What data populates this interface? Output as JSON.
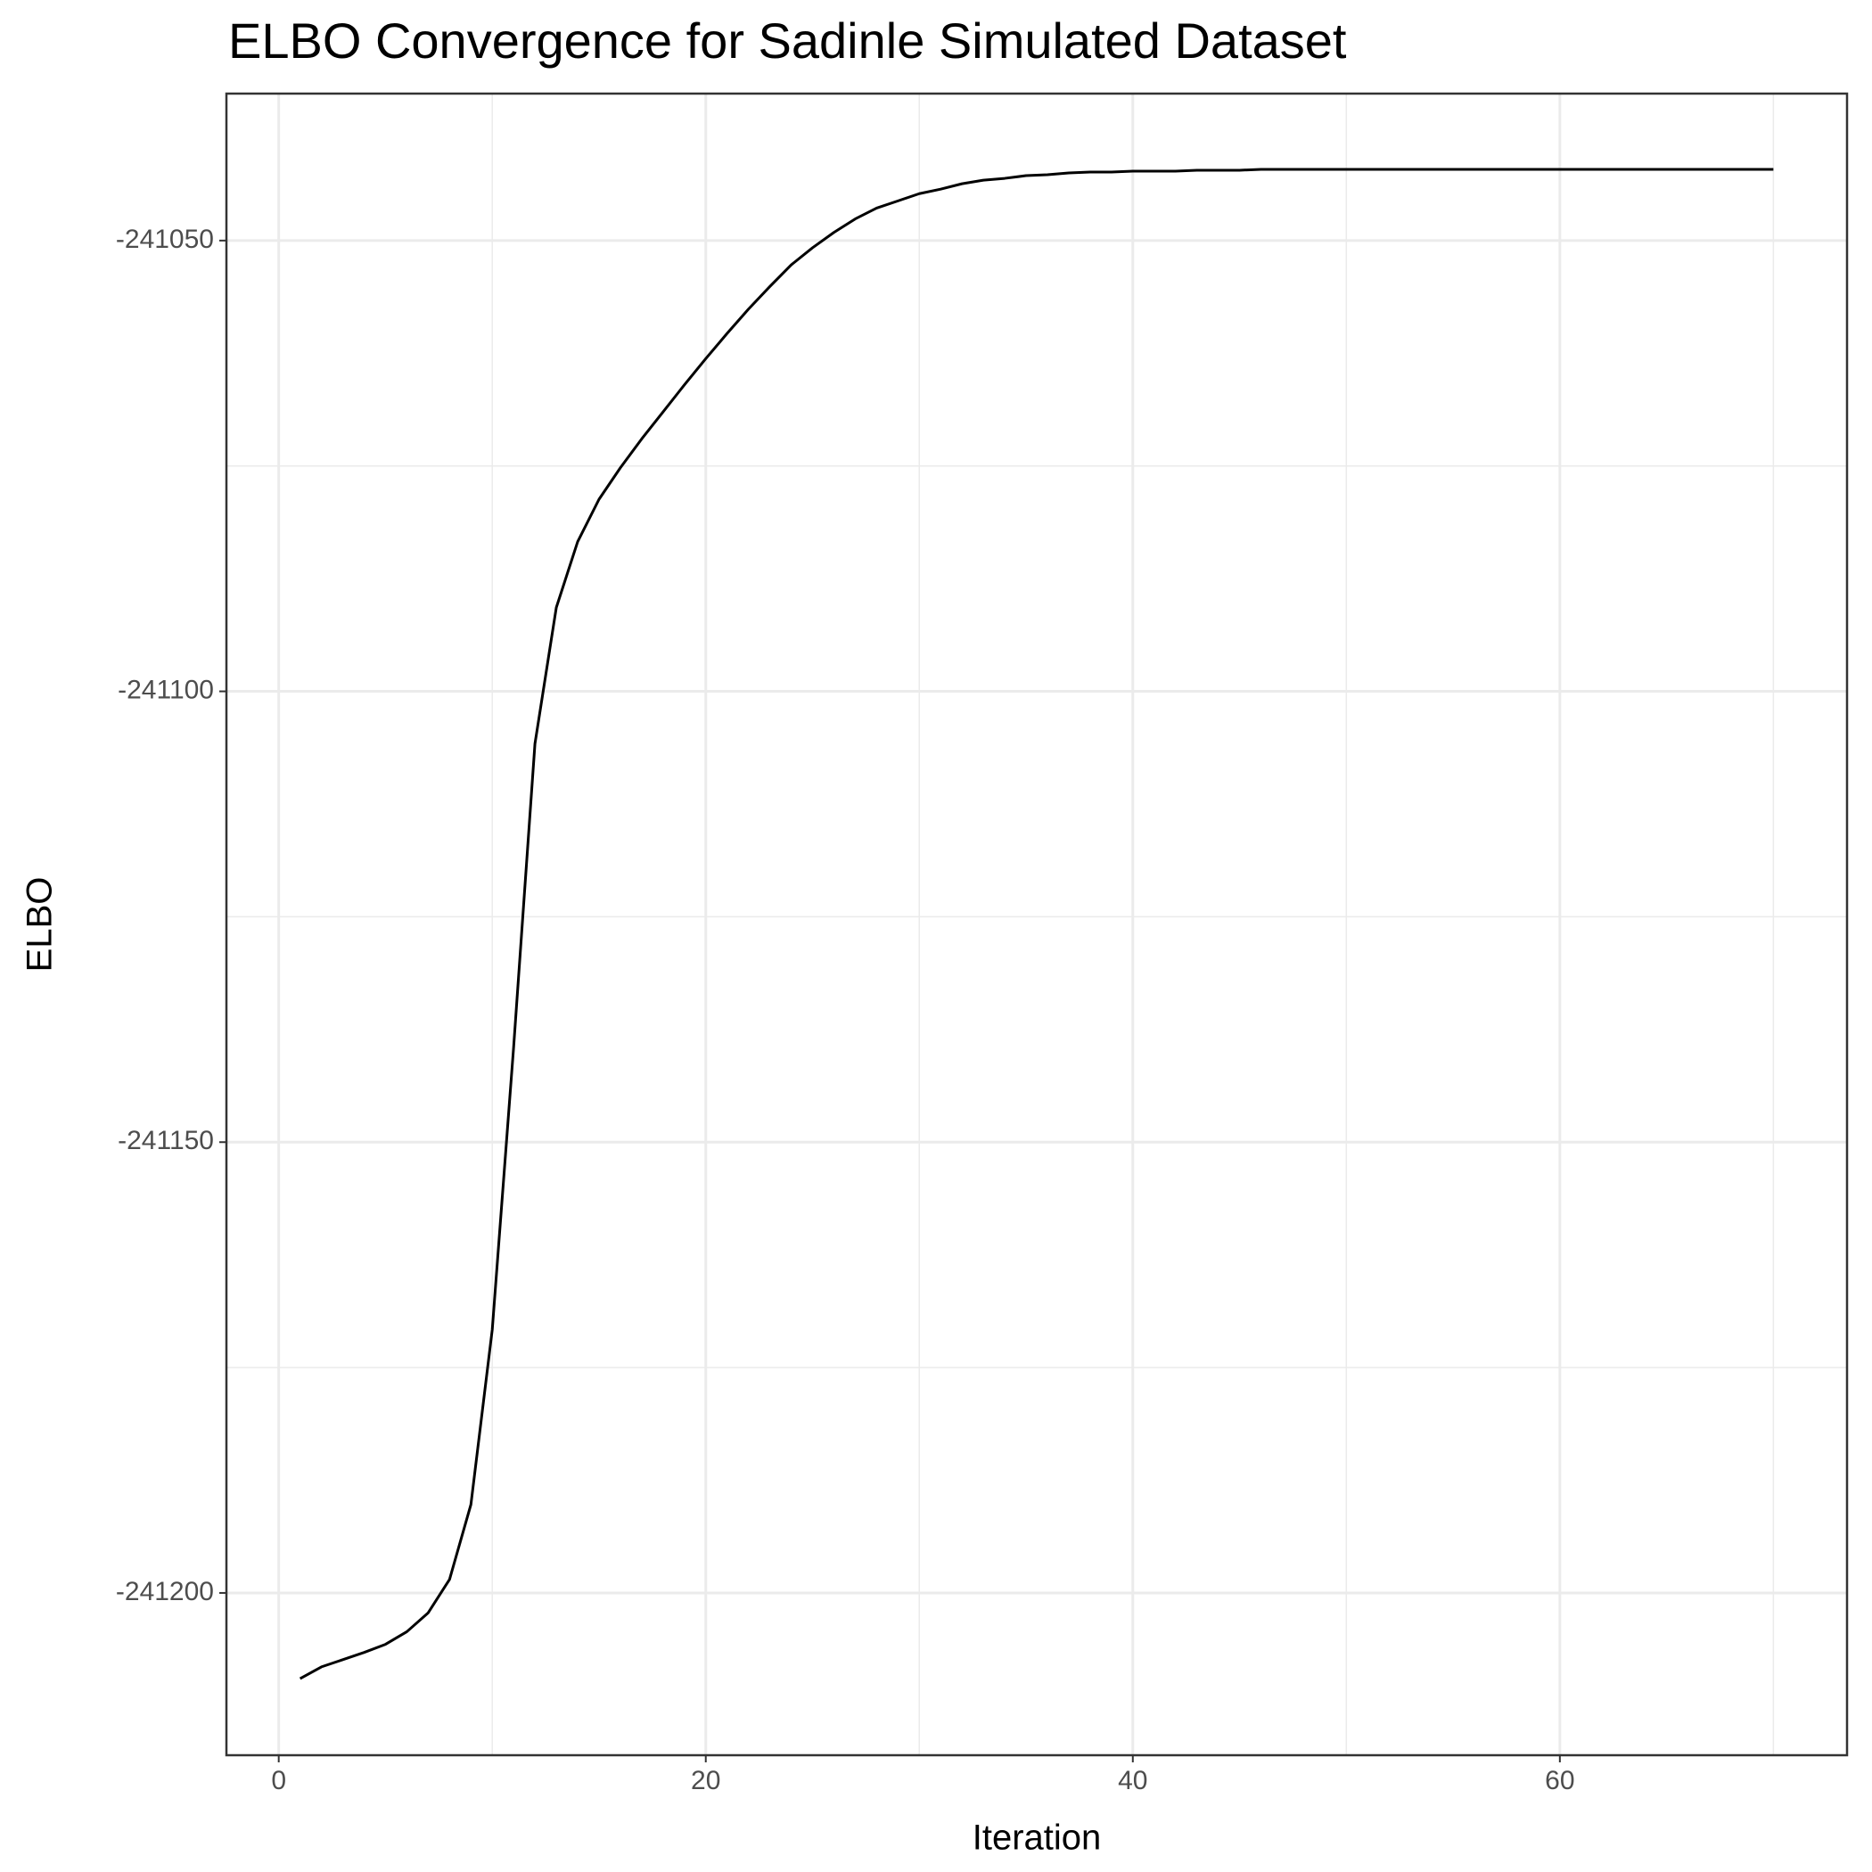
{
  "chart_data": {
    "type": "line",
    "title": "ELBO Convergence for Sadinle Simulated Dataset",
    "x_label": "Iteration",
    "y_label": "ELBO",
    "x": [
      1,
      2,
      3,
      4,
      5,
      6,
      7,
      8,
      9,
      10,
      11,
      12,
      13,
      14,
      15,
      16,
      17,
      18,
      19,
      20,
      21,
      22,
      23,
      24,
      25,
      26,
      27,
      28,
      29,
      30,
      31,
      32,
      33,
      34,
      35,
      36,
      37,
      38,
      39,
      40,
      41,
      42,
      43,
      44,
      45,
      46,
      47,
      48,
      49,
      50,
      51,
      52,
      53,
      54,
      55,
      56,
      57,
      58,
      59,
      60,
      61,
      62,
      63,
      64,
      65,
      66,
      67,
      68,
      69,
      70
    ],
    "series": [
      {
        "name": "ELBO",
        "color": "#000000",
        "values": [
          -241209.5,
          -241208.2,
          -241207.4,
          -241206.6,
          -241205.7,
          -241204.3,
          -241202.2,
          -241198.5,
          -241190.2,
          -241170.8,
          -241139.5,
          -241105.8,
          -241090.7,
          -241083.4,
          -241078.7,
          -241075.2,
          -241072.0,
          -241069.0,
          -241066.0,
          -241063.1,
          -241060.3,
          -241057.6,
          -241055.1,
          -241052.7,
          -241050.8,
          -241049.1,
          -241047.6,
          -241046.4,
          -241045.6,
          -241044.8,
          -241044.3,
          -241043.7,
          -241043.3,
          -241043.1,
          -241042.8,
          -241042.7,
          -241042.5,
          -241042.4,
          -241042.4,
          -241042.3,
          -241042.3,
          -241042.3,
          -241042.2,
          -241042.2,
          -241042.2,
          -241042.1,
          -241042.1,
          -241042.1,
          -241042.1,
          -241042.1,
          -241042.1,
          -241042.1,
          -241042.1,
          -241042.1,
          -241042.1,
          -241042.1,
          -241042.1,
          -241042.1,
          -241042.1,
          -241042.1,
          -241042.1,
          -241042.1,
          -241042.1,
          -241042.1,
          -241042.1,
          -241042.1,
          -241042.1,
          -241042.1,
          -241042.1,
          -241042.1
        ]
      }
    ],
    "xlim": [
      -2.45,
      73.45
    ],
    "ylim": [
      -241218.0,
      -241033.7
    ],
    "xticks": [
      0,
      20,
      40,
      60
    ],
    "yticks": [
      -241200,
      -241150,
      -241100,
      -241050
    ],
    "minor_xticks": [
      10,
      30,
      50,
      70
    ],
    "minor_yticks": [
      -241175,
      -241125,
      -241075
    ],
    "grid": true
  }
}
